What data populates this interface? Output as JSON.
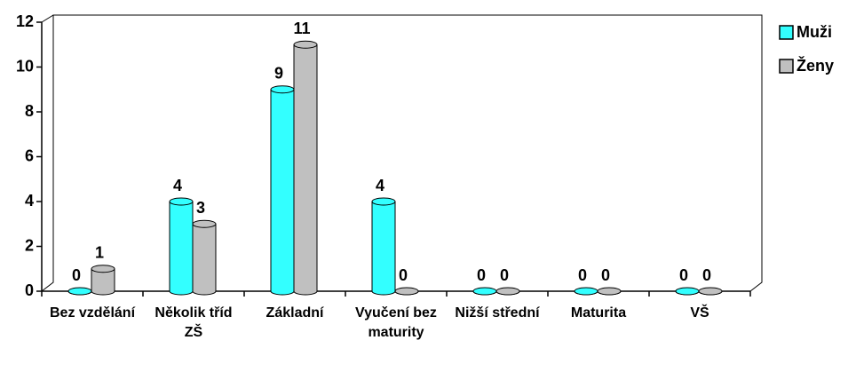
{
  "chart_data": {
    "type": "bar",
    "categories": [
      "Bez vzdělání",
      "Několik tříd ZŠ",
      "Základní",
      "Vyučení bez maturity",
      "Nižší střední",
      "Maturita",
      "VŠ"
    ],
    "series": [
      {
        "name": "Muži",
        "color": "#33ffff",
        "values": [
          0,
          4,
          9,
          4,
          0,
          0,
          0
        ]
      },
      {
        "name": "Ženy",
        "color": "#c0c0c0",
        "values": [
          1,
          3,
          11,
          0,
          0,
          0,
          0
        ]
      }
    ],
    "ylim": [
      0,
      12
    ],
    "yticks": [
      0,
      2,
      4,
      6,
      8,
      10,
      12
    ],
    "legend": "right"
  }
}
